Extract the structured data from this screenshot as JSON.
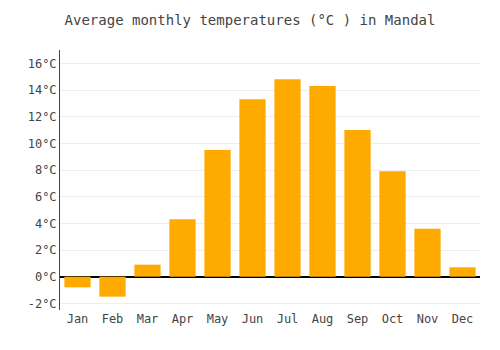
{
  "chart_data": {
    "type": "bar",
    "title": "Average monthly temperatures (°C ) in Mandal",
    "categories": [
      "Jan",
      "Feb",
      "Mar",
      "Apr",
      "May",
      "Jun",
      "Jul",
      "Aug",
      "Sep",
      "Oct",
      "Nov",
      "Dec"
    ],
    "values": [
      -0.8,
      -1.5,
      0.9,
      4.3,
      9.5,
      13.3,
      14.8,
      14.3,
      11.0,
      7.9,
      3.6,
      0.7
    ],
    "color": "#FFAA00",
    "ylim": [
      -2.5,
      17.0
    ],
    "yticks": [
      {
        "value": -2,
        "label": "-2°C"
      },
      {
        "value": 0,
        "label": "0°C"
      },
      {
        "value": 2,
        "label": "2°C"
      },
      {
        "value": 4,
        "label": "4°C"
      },
      {
        "value": 6,
        "label": "6°C"
      },
      {
        "value": 8,
        "label": "8°C"
      },
      {
        "value": 10,
        "label": "10°C"
      },
      {
        "value": 12,
        "label": "12°C"
      },
      {
        "value": 14,
        "label": "14°C"
      },
      {
        "value": 16,
        "label": "16°C"
      }
    ],
    "grid": true
  }
}
